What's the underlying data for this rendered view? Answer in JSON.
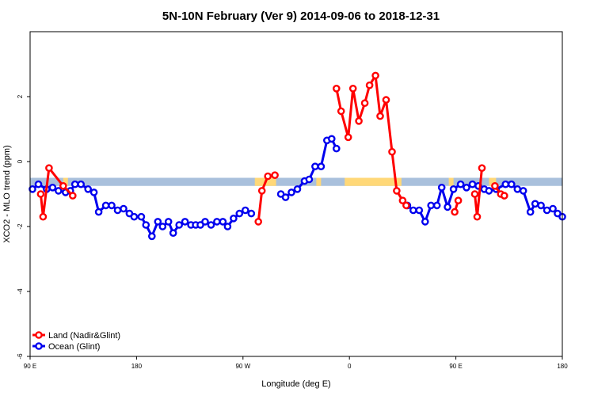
{
  "chart_data": {
    "type": "line",
    "title": "5N-10N February (Ver 9)   2014-09-06 to 2018-12-31",
    "xlabel": "Longitude (deg E)",
    "ylabel": "XCO2 - MLO trend (ppm)",
    "xlim": [
      90,
      540
    ],
    "ylim": [
      -6,
      4
    ],
    "x_ticks": [
      {
        "value": 90,
        "label": "90 E"
      },
      {
        "value": 180,
        "label": "180"
      },
      {
        "value": 270,
        "label": "90 W"
      },
      {
        "value": 360,
        "label": "0"
      },
      {
        "value": 450,
        "label": "90 E"
      },
      {
        "value": 540,
        "label": "180"
      }
    ],
    "y_ticks": [
      {
        "value": -6,
        "label": "-6"
      },
      {
        "value": -4,
        "label": "-4"
      },
      {
        "value": -2,
        "label": "-2"
      },
      {
        "value": 0,
        "label": "0"
      },
      {
        "value": 2,
        "label": "2"
      }
    ],
    "legend_position": "bottom-left",
    "grid": false,
    "colors": {
      "land": "#ff0000",
      "ocean": "#0000ee",
      "band_ocean": "#a9c0dc",
      "band_land": "#ffd878"
    },
    "series": [
      {
        "name": "Land (Nadir&Glint)",
        "color": "#ff0000",
        "segments": [
          [
            [
              99,
              -1.0
            ],
            [
              101,
              -1.7
            ],
            [
              106,
              -0.2
            ],
            [
              118,
              -0.75
            ],
            [
              126,
              -1.05
            ]
          ],
          [
            [
              283,
              -1.85
            ],
            [
              286,
              -0.9
            ],
            [
              291,
              -0.45
            ],
            [
              297,
              -0.42
            ]
          ],
          [
            [
              349,
              2.25
            ],
            [
              353,
              1.55
            ],
            [
              359,
              0.75
            ],
            [
              363,
              2.25
            ],
            [
              368,
              1.25
            ],
            [
              373,
              1.8
            ],
            [
              377,
              2.35
            ],
            [
              382,
              2.65
            ],
            [
              386,
              1.4
            ],
            [
              391,
              1.9
            ],
            [
              396,
              0.3
            ],
            [
              400,
              -0.9
            ],
            [
              405,
              -1.2
            ],
            [
              408,
              -1.35
            ]
          ],
          [
            [
              449,
              -1.55
            ],
            [
              452,
              -1.2
            ]
          ],
          [
            [
              466,
              -1.0
            ],
            [
              468,
              -1.7
            ],
            [
              472,
              -0.2
            ]
          ],
          [
            [
              483,
              -0.75
            ],
            [
              488,
              -1.0
            ],
            [
              491,
              -1.05
            ]
          ]
        ]
      },
      {
        "name": "Ocean (Glint)",
        "color": "#0000ee",
        "segments": [
          [
            [
              92,
              -0.85
            ],
            [
              97,
              -0.7
            ],
            [
              104,
              -0.85
            ],
            [
              109,
              -0.8
            ],
            [
              114,
              -0.9
            ],
            [
              120,
              -0.95
            ],
            [
              124,
              -0.9
            ],
            [
              128,
              -0.7
            ],
            [
              133,
              -0.7
            ],
            [
              139,
              -0.85
            ],
            [
              144,
              -0.95
            ],
            [
              148,
              -1.55
            ],
            [
              154,
              -1.35
            ],
            [
              159,
              -1.35
            ],
            [
              164,
              -1.5
            ],
            [
              169,
              -1.45
            ],
            [
              174,
              -1.6
            ],
            [
              178,
              -1.7
            ],
            [
              184,
              -1.7
            ],
            [
              188,
              -1.95
            ],
            [
              193,
              -2.3
            ],
            [
              198,
              -1.85
            ],
            [
              202,
              -2.0
            ],
            [
              207,
              -1.85
            ],
            [
              211,
              -2.2
            ],
            [
              216,
              -1.95
            ],
            [
              221,
              -1.85
            ],
            [
              226,
              -1.95
            ],
            [
              230,
              -1.95
            ],
            [
              234,
              -1.95
            ],
            [
              238,
              -1.85
            ],
            [
              243,
              -1.95
            ],
            [
              248,
              -1.85
            ],
            [
              253,
              -1.85
            ],
            [
              257,
              -2.0
            ],
            [
              262,
              -1.75
            ],
            [
              267,
              -1.6
            ],
            [
              272,
              -1.5
            ],
            [
              277,
              -1.6
            ]
          ],
          [
            [
              302,
              -1.0
            ],
            [
              306,
              -1.1
            ],
            [
              311,
              -0.95
            ],
            [
              316,
              -0.85
            ],
            [
              322,
              -0.6
            ],
            [
              326,
              -0.55
            ],
            [
              331,
              -0.15
            ],
            [
              336,
              -0.15
            ],
            [
              341,
              0.65
            ],
            [
              345,
              0.7
            ],
            [
              349,
              0.4
            ]
          ],
          [
            [
              409,
              -1.35
            ],
            [
              414,
              -1.5
            ],
            [
              419,
              -1.5
            ],
            [
              424,
              -1.85
            ],
            [
              429,
              -1.35
            ],
            [
              434,
              -1.35
            ],
            [
              438,
              -0.8
            ],
            [
              443,
              -1.4
            ],
            [
              448,
              -0.85
            ],
            [
              454,
              -0.7
            ],
            [
              459,
              -0.8
            ],
            [
              464,
              -0.7
            ],
            [
              469,
              -0.75
            ],
            [
              474,
              -0.85
            ],
            [
              478,
              -0.9
            ],
            [
              484,
              -0.85
            ],
            [
              492,
              -0.7
            ],
            [
              497,
              -0.7
            ],
            [
              502,
              -0.85
            ],
            [
              507,
              -0.9
            ],
            [
              513,
              -1.55
            ],
            [
              517,
              -1.3
            ],
            [
              522,
              -1.35
            ],
            [
              527,
              -1.5
            ],
            [
              532,
              -1.45
            ],
            [
              536,
              -1.6
            ],
            [
              540,
              -1.7
            ]
          ]
        ]
      }
    ]
  }
}
